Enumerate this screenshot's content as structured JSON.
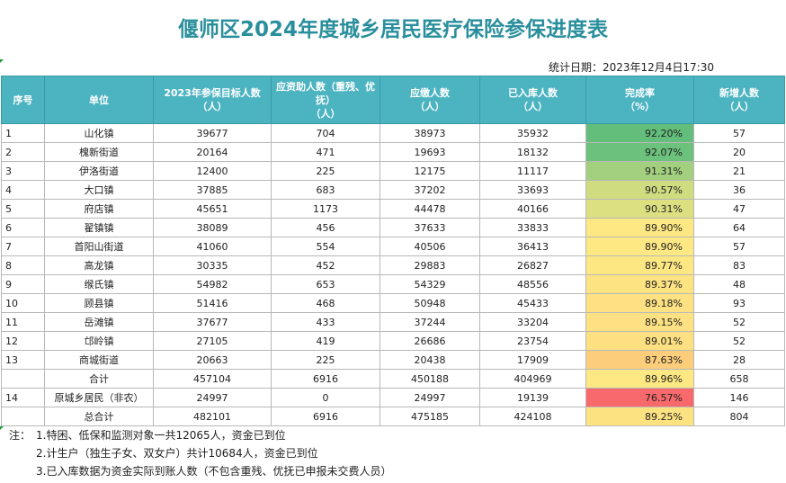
{
  "title": "偃师区2024年度城乡居民医疗保险参保进度表",
  "stat_date": "统计日期：2023年12月4日17:30",
  "headers": [
    "序号",
    "单位",
    "2023年参保目标人数\n（人）",
    "应资助人数（重残、优抚）\n（人）",
    "应缴人数\n（人）",
    "已入库人数\n（人）",
    "完成率\n（%）",
    "新增人数\n（人）"
  ],
  "rows": [
    {
      "idx": "1",
      "unit": "山化镇",
      "target": "39677",
      "aid": "704",
      "due": "38973",
      "stored": "35932",
      "rate": "92.20%",
      "new": "57",
      "rate_color": "#63be7b"
    },
    {
      "idx": "2",
      "unit": "槐新街道",
      "target": "20164",
      "aid": "471",
      "due": "19693",
      "stored": "18132",
      "rate": "92.07%",
      "new": "20",
      "rate_color": "#6cc17c"
    },
    {
      "idx": "3",
      "unit": "伊洛街道",
      "target": "12400",
      "aid": "225",
      "due": "12175",
      "stored": "11117",
      "rate": "91.31%",
      "new": "21",
      "rate_color": "#a3d07e"
    },
    {
      "idx": "4",
      "unit": "大口镇",
      "target": "37885",
      "aid": "683",
      "due": "37202",
      "stored": "33693",
      "rate": "90.57%",
      "new": "36",
      "rate_color": "#cfdc80"
    },
    {
      "idx": "5",
      "unit": "府店镇",
      "target": "45651",
      "aid": "1173",
      "due": "44478",
      "stored": "40166",
      "rate": "90.31%",
      "new": "47",
      "rate_color": "#dde081"
    },
    {
      "idx": "6",
      "unit": "翟镇镇",
      "target": "38089",
      "aid": "456",
      "due": "37633",
      "stored": "33833",
      "rate": "89.90%",
      "new": "64",
      "rate_color": "#fde883"
    },
    {
      "idx": "7",
      "unit": "首阳山街道",
      "target": "41060",
      "aid": "554",
      "due": "40506",
      "stored": "36413",
      "rate": "89.90%",
      "new": "57",
      "rate_color": "#fde883"
    },
    {
      "idx": "8",
      "unit": "高龙镇",
      "target": "30335",
      "aid": "452",
      "due": "29883",
      "stored": "26827",
      "rate": "89.77%",
      "new": "83",
      "rate_color": "#fde783"
    },
    {
      "idx": "9",
      "unit": "缑氏镇",
      "target": "54982",
      "aid": "653",
      "due": "54329",
      "stored": "48556",
      "rate": "89.37%",
      "new": "48",
      "rate_color": "#fde382"
    },
    {
      "idx": "10",
      "unit": "顾县镇",
      "target": "51416",
      "aid": "468",
      "due": "50948",
      "stored": "45433",
      "rate": "89.18%",
      "new": "93",
      "rate_color": "#fde182"
    },
    {
      "idx": "11",
      "unit": "岳滩镇",
      "target": "37677",
      "aid": "433",
      "due": "37244",
      "stored": "33204",
      "rate": "89.15%",
      "new": "52",
      "rate_color": "#fde182"
    },
    {
      "idx": "12",
      "unit": "邙岭镇",
      "target": "27105",
      "aid": "419",
      "due": "26686",
      "stored": "23754",
      "rate": "89.01%",
      "new": "52",
      "rate_color": "#fde081"
    },
    {
      "idx": "13",
      "unit": "商城街道",
      "target": "20663",
      "aid": "225",
      "due": "20438",
      "stored": "17909",
      "rate": "87.63%",
      "new": "28",
      "rate_color": "#fcce7c"
    },
    {
      "idx": "",
      "unit": "合计",
      "target": "457104",
      "aid": "6916",
      "due": "450188",
      "stored": "404969",
      "rate": "89.96%",
      "new": "658",
      "rate_color": "#fde883"
    },
    {
      "idx": "14",
      "unit": "原城乡居民（非农）",
      "target": "24997",
      "aid": "0",
      "due": "24997",
      "stored": "19139",
      "rate": "76.57%",
      "new": "146",
      "rate_color": "#f8696b"
    },
    {
      "idx": "",
      "unit": "总合计",
      "target": "482101",
      "aid": "6916",
      "due": "475185",
      "stored": "424108",
      "rate": "89.25%",
      "new": "804",
      "rate_color": "#fde282"
    }
  ],
  "notes": {
    "lead": "注：",
    "items": [
      "1.特困、低保和监测对象一共12065人，资金已到位",
      "2.计生户（独生子女、双女户）共计10684人，资金已到位",
      "3.已入库数据为资金实际到账人数（不包含重残、优抚已申报未交费人员）"
    ]
  }
}
